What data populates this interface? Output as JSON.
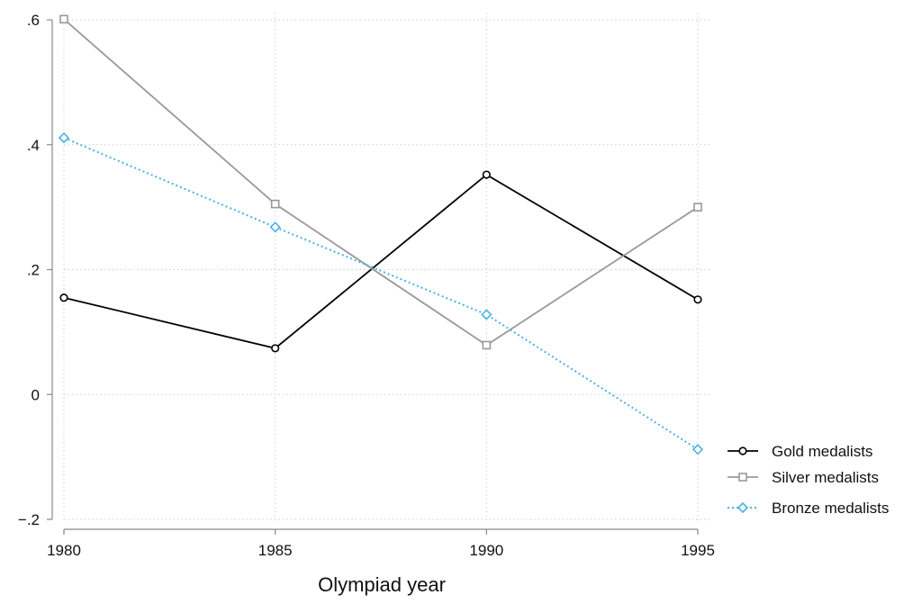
{
  "chart_data": {
    "type": "line",
    "title": "",
    "xlabel": "Olympiad year",
    "ylabel": "",
    "x": [
      1980,
      1985,
      1990,
      1995
    ],
    "xticks": [
      1980,
      1985,
      1990,
      1995
    ],
    "xtick_labels": [
      "1980",
      "1985",
      "1990",
      "1995"
    ],
    "yticks": [
      -0.2,
      0,
      0.2,
      0.4,
      0.6
    ],
    "ytick_labels": [
      "−.2",
      "0",
      ".2",
      ".4",
      ".6"
    ],
    "xlim": [
      1980,
      1995
    ],
    "ylim": [
      -0.2,
      0.6
    ],
    "grid": true,
    "legend_position": "right",
    "series": [
      {
        "name": "Gold medalists",
        "values": [
          0.155,
          0.074,
          0.352,
          0.152
        ],
        "color": "#000000",
        "marker": "circle",
        "dash": "solid"
      },
      {
        "name": "Silver medalists",
        "values": [
          0.601,
          0.305,
          0.079,
          0.3
        ],
        "color": "#999999",
        "marker": "square",
        "dash": "solid"
      },
      {
        "name": "Bronze medalists",
        "values": [
          0.411,
          0.268,
          0.128,
          -0.088
        ],
        "color": "#4cb1e4",
        "marker": "diamond",
        "dash": "dotted"
      }
    ]
  }
}
